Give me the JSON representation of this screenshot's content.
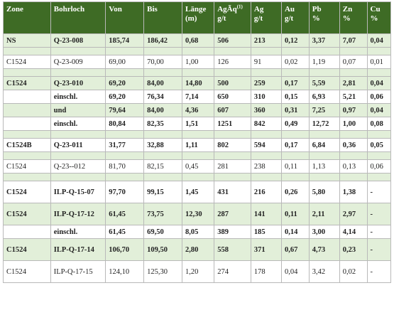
{
  "headers": [
    {
      "key": "zone",
      "line1": "Zone",
      "line2": ""
    },
    {
      "key": "bohrloch",
      "line1": "Bohrloch",
      "line2": ""
    },
    {
      "key": "von",
      "line1": "Von",
      "line2": ""
    },
    {
      "key": "bis",
      "line1": "Bis",
      "line2": ""
    },
    {
      "key": "lange",
      "line1": "Länge",
      "line2": "(m)"
    },
    {
      "key": "agaq",
      "line1": "AgÃq",
      "sup": "(1)",
      "line2": "g/t"
    },
    {
      "key": "ag",
      "line1": "Ag",
      "line2": "g/t"
    },
    {
      "key": "au",
      "line1": "Au",
      "line2": "g/t"
    },
    {
      "key": "pb",
      "line1": "Pb",
      "line2": "%"
    },
    {
      "key": "zn",
      "line1": "Zn",
      "line2": "%"
    },
    {
      "key": "cu",
      "line1": "Cu",
      "line2": "%"
    }
  ],
  "rows": [
    {
      "type": "data",
      "bold": true,
      "green": true,
      "tall": false,
      "cells": [
        "NS",
        "Q-23-008",
        "185,74",
        "186,42",
        "0,68",
        "506",
        "213",
        "0,12",
        "3,37",
        "7,07",
        "0,04"
      ]
    },
    {
      "type": "spacer",
      "green": true
    },
    {
      "type": "data",
      "bold": false,
      "green": false,
      "tall": false,
      "cells": [
        "C1524",
        "Q-23-009",
        "69,00",
        "70,00",
        "1,00",
        "126",
        "91",
        "0,02",
        "1,19",
        "0,07",
        "0,01"
      ]
    },
    {
      "type": "spacer",
      "green": true
    },
    {
      "type": "data",
      "bold": true,
      "green": true,
      "tall": false,
      "cells": [
        "C1524",
        "Q-23-010",
        "69,20",
        "84,00",
        "14,80",
        "500",
        "259",
        "0,17",
        "5,59",
        "2,81",
        "0,04"
      ]
    },
    {
      "type": "data",
      "bold": true,
      "green": false,
      "tall": false,
      "cells": [
        "",
        "einschl.",
        "69,20",
        "76,34",
        "7,14",
        "650",
        "310",
        "0,15",
        "6,93",
        "5,21",
        "0,06"
      ]
    },
    {
      "type": "data",
      "bold": true,
      "green": true,
      "tall": false,
      "cells": [
        "",
        "und",
        "79,64",
        "84,00",
        "4,36",
        "607",
        "360",
        "0,31",
        "7,25",
        "0,97",
        "0,04"
      ]
    },
    {
      "type": "data",
      "bold": true,
      "green": false,
      "tall": false,
      "cells": [
        "",
        "einschl.",
        "80,84",
        "82,35",
        "1,51",
        "1251",
        "842",
        "0,49",
        "12,72",
        "1,00",
        "0,08"
      ]
    },
    {
      "type": "spacer",
      "green": true
    },
    {
      "type": "data",
      "bold": true,
      "green": false,
      "tall": false,
      "cells": [
        "C1524B",
        "Q-23-011",
        "31,77",
        "32,88",
        "1,11",
        "802",
        "594",
        "0,17",
        "6,84",
        "0,36",
        "0,05"
      ]
    },
    {
      "type": "spacer",
      "green": true
    },
    {
      "type": "data",
      "bold": false,
      "green": false,
      "tall": false,
      "cells": [
        "C1524",
        "Q-23--012",
        "81,70",
        "82,15",
        "0,45",
        "281",
        "238",
        "0,11",
        "1,13",
        "0,13",
        "0,06"
      ]
    },
    {
      "type": "spacer",
      "green": true
    },
    {
      "type": "data",
      "bold": true,
      "green": false,
      "tall": true,
      "cells": [
        "C1524",
        "ILP-Q-15-07",
        "97,70",
        "99,15",
        "1,45",
        "431",
        "216",
        "0,26",
        "5,80",
        "1,38",
        "-"
      ]
    },
    {
      "type": "data",
      "bold": true,
      "green": true,
      "tall": true,
      "cells": [
        "C1524",
        "ILP-Q-17-12",
        "61,45",
        "73,75",
        "12,30",
        "287",
        "141",
        "0,11",
        "2,11",
        "2,97",
        "-"
      ]
    },
    {
      "type": "data",
      "bold": true,
      "green": false,
      "tall": false,
      "cells": [
        "",
        "einschl.",
        "61,45",
        "69,50",
        "8,05",
        "389",
        "185",
        "0,14",
        "3,00",
        "4,14",
        "-"
      ]
    },
    {
      "type": "data",
      "bold": true,
      "green": true,
      "tall": true,
      "cells": [
        "C1524",
        "ILP-Q-17-14",
        "106,70",
        "109,50",
        "2,80",
        "558",
        "371",
        "0,67",
        "4,73",
        "0,23",
        "-"
      ]
    },
    {
      "type": "data",
      "bold": false,
      "green": false,
      "tall": true,
      "cells": [
        "C1524",
        "ILP-Q-17-15",
        "124,10",
        "125,30",
        "1,20",
        "274",
        "178",
        "0,04",
        "3,42",
        "0,02",
        "-"
      ]
    }
  ]
}
